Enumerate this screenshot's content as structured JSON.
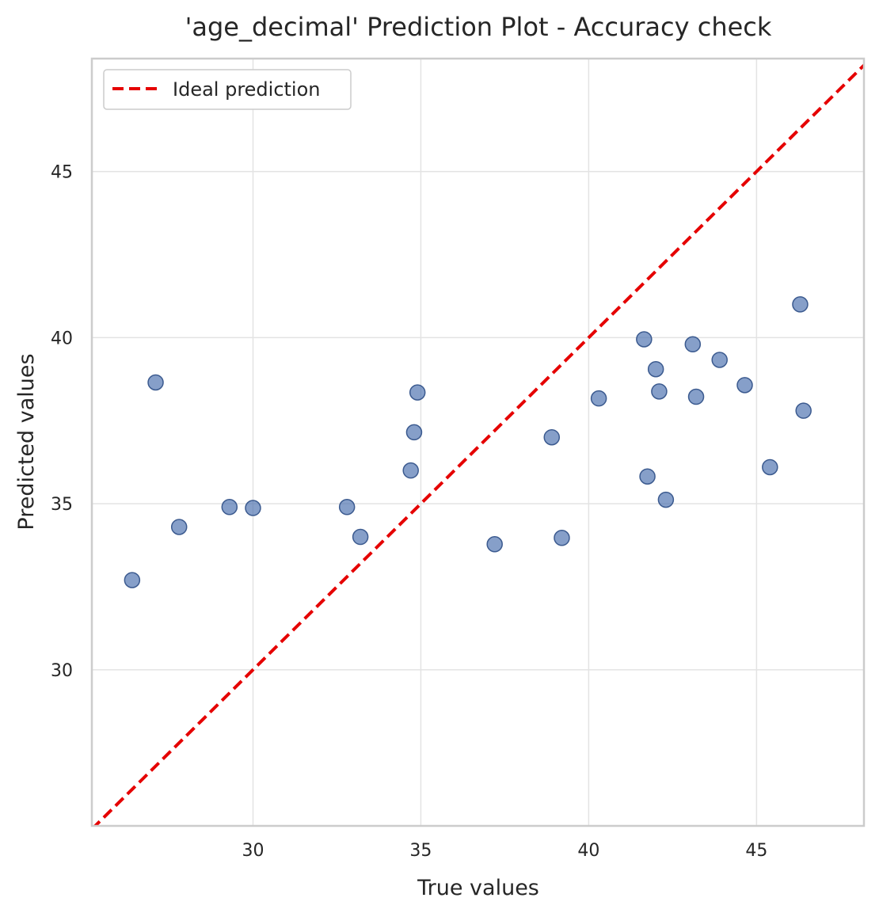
{
  "chart_data": {
    "type": "scatter",
    "title": "'age_decimal' Prediction Plot - Accuracy check",
    "xlabel": "True values",
    "ylabel": "Predicted values",
    "xlim": [
      25.2,
      48.2
    ],
    "ylim": [
      25.3,
      48.4
    ],
    "xticks": [
      30,
      35,
      40,
      45
    ],
    "yticks": [
      30,
      35,
      40,
      45
    ],
    "grid": true,
    "legend_position": "top-left",
    "series": [
      {
        "type": "scatter",
        "color": "#4c72b0",
        "points": [
          {
            "x": 26.4,
            "y": 32.7
          },
          {
            "x": 27.1,
            "y": 38.65
          },
          {
            "x": 27.8,
            "y": 34.3
          },
          {
            "x": 29.3,
            "y": 34.9
          },
          {
            "x": 30.0,
            "y": 34.87
          },
          {
            "x": 32.8,
            "y": 34.9
          },
          {
            "x": 33.2,
            "y": 34.0
          },
          {
            "x": 34.7,
            "y": 36.0
          },
          {
            "x": 34.8,
            "y": 37.15
          },
          {
            "x": 34.9,
            "y": 38.35
          },
          {
            "x": 37.2,
            "y": 33.78
          },
          {
            "x": 38.9,
            "y": 37.0
          },
          {
            "x": 39.2,
            "y": 33.97
          },
          {
            "x": 40.3,
            "y": 38.17
          },
          {
            "x": 41.65,
            "y": 39.95
          },
          {
            "x": 41.75,
            "y": 35.82
          },
          {
            "x": 42.0,
            "y": 39.05
          },
          {
            "x": 42.1,
            "y": 38.38
          },
          {
            "x": 42.3,
            "y": 35.12
          },
          {
            "x": 43.1,
            "y": 39.8
          },
          {
            "x": 43.2,
            "y": 38.22
          },
          {
            "x": 43.9,
            "y": 39.33
          },
          {
            "x": 44.65,
            "y": 38.57
          },
          {
            "x": 45.4,
            "y": 36.1
          },
          {
            "x": 46.3,
            "y": 41.0
          },
          {
            "x": 46.4,
            "y": 37.8
          }
        ]
      },
      {
        "type": "line",
        "name": "Ideal prediction",
        "color": "#e50000",
        "dashed": true,
        "points": [
          {
            "x": 25.2,
            "y": 25.2
          },
          {
            "x": 48.4,
            "y": 48.4
          }
        ]
      }
    ]
  }
}
